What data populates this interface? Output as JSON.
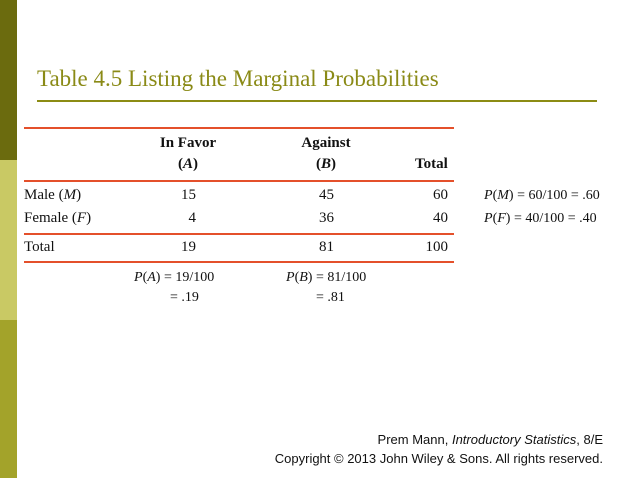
{
  "slide": {
    "title": "Table 4.5 Listing the Marginal Probabilities",
    "accent_color": "#8a8a16",
    "rule_color": "#e4502b"
  },
  "table": {
    "headers": {
      "col1_line1": "In Favor",
      "col1_line2": "A",
      "col2_line1": "Against",
      "col2_line2": "B",
      "col3": "Total"
    },
    "rows": [
      {
        "label": "Male",
        "symbol": "M",
        "in_favor": "15",
        "against": "45",
        "total": "60",
        "prob_var": "M",
        "prob_expr": "60/100",
        "prob_value": ".60"
      },
      {
        "label": "Female",
        "symbol": "F",
        "in_favor": "4",
        "against": "36",
        "total": "40",
        "prob_var": "F",
        "prob_expr": "40/100",
        "prob_value": ".40"
      }
    ],
    "total_row": {
      "label": "Total",
      "in_favor": "19",
      "against": "81",
      "total": "100"
    },
    "column_probs": [
      {
        "var": "A",
        "expr": "19/100",
        "value": ".19"
      },
      {
        "var": "B",
        "expr": "81/100",
        "value": ".81"
      }
    ]
  },
  "footer": {
    "author": "Prem Mann, ",
    "book": "Introductory Statistics",
    "edition": ", 8/E",
    "copyright": "Copyright © 2013 John Wiley & Sons. All rights reserved."
  }
}
